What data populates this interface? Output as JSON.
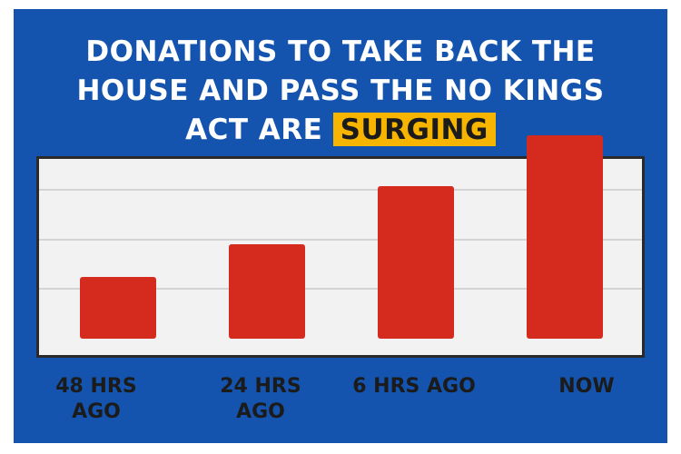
{
  "header": {
    "title_line1": "DONATIONS TO TAKE BACK THE",
    "title_line2": "HOUSE AND PASS THE NO KINGS",
    "title_line3_prefix": "ACT ARE",
    "title_highlight": "SURGING"
  },
  "colors": {
    "background": "#1454ae",
    "bar": "#d42b1e",
    "highlight": "#f7b500",
    "plot_background": "#f2f2f2"
  },
  "chart_data": {
    "type": "bar",
    "categories": [
      "48 HRS AGO",
      "24 HRS AGO",
      "6 HRS AGO",
      "NOW"
    ],
    "values": [
      68,
      104,
      168,
      224
    ],
    "ylim": [
      0,
      240
    ],
    "grid": true,
    "gridlines": [
      55,
      109,
      164
    ],
    "title": "",
    "xlabel": "",
    "ylabel": ""
  }
}
